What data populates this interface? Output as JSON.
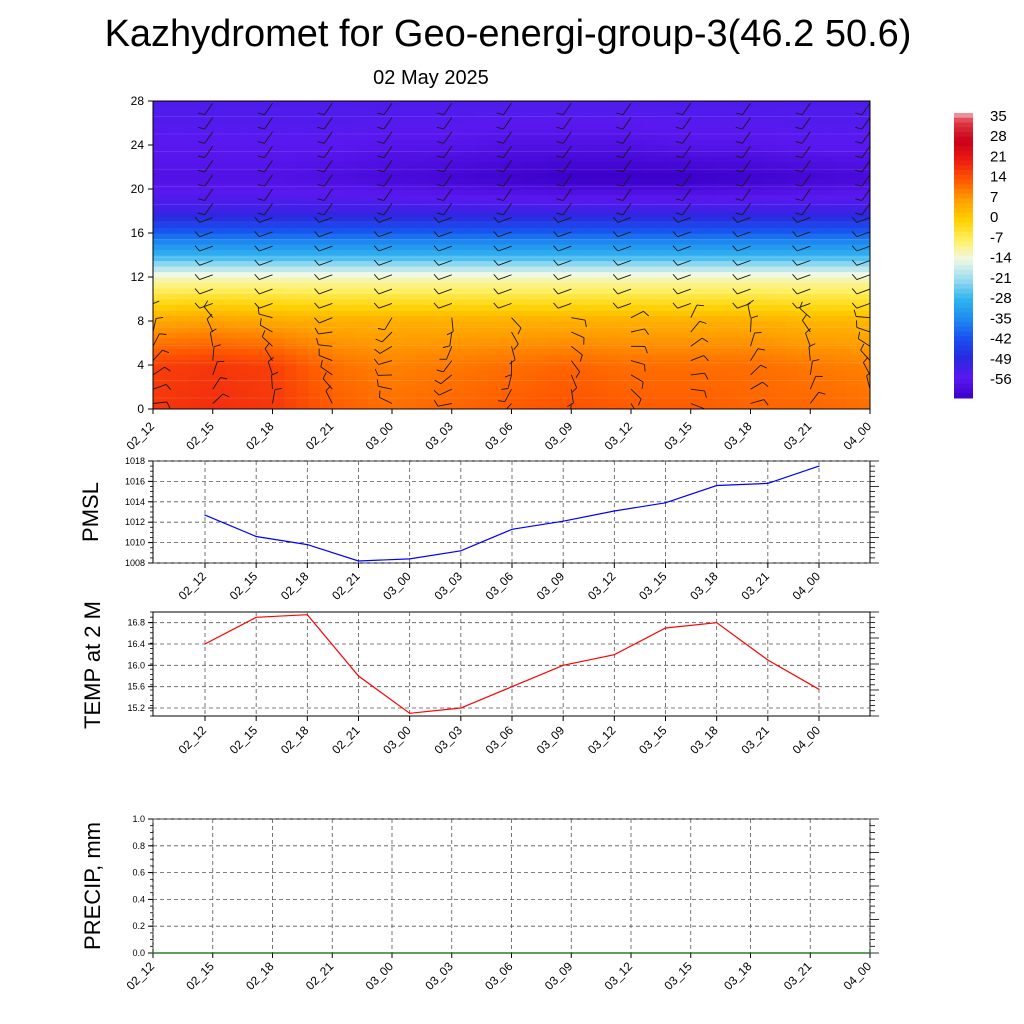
{
  "title": "Kazhydromet for Geo-energi-group-3(46.2 50.6)",
  "subtitle": "02 May 2025",
  "chart_data": [
    {
      "type": "heatmap",
      "name": "temperature-wind-cross-section",
      "x_ticks": [
        "02_12",
        "02_15",
        "02_18",
        "02_21",
        "03_00",
        "03_03",
        "03_06",
        "03_09",
        "03_12",
        "03_15",
        "03_18",
        "03_21",
        "04_00"
      ],
      "y_ticks": [
        "0",
        "4",
        "8",
        "12",
        "16",
        "20",
        "24",
        "28"
      ],
      "ylim": [
        0,
        28
      ],
      "x_rows": [
        {
          "level": 0,
          "values": [
            18,
            19,
            18,
            14,
            12,
            13,
            14,
            15,
            14,
            14,
            13,
            13,
            12
          ]
        },
        {
          "level": 4,
          "values": [
            17,
            18,
            17,
            12,
            10,
            11,
            12,
            13,
            12,
            12,
            12,
            11,
            10
          ]
        },
        {
          "level": 8,
          "values": [
            6,
            7,
            6,
            5,
            5,
            5,
            5,
            5,
            5,
            5,
            5,
            4,
            4
          ]
        },
        {
          "level": 12,
          "values": [
            -12,
            -12,
            -12,
            -12,
            -12,
            -12,
            -12,
            -12,
            -12,
            -12,
            -12,
            -12,
            -12
          ]
        },
        {
          "level": 14,
          "values": [
            -28,
            -28,
            -28,
            -28,
            -28,
            -28,
            -28,
            -28,
            -28,
            -28,
            -28,
            -28,
            -28
          ]
        },
        {
          "level": 16,
          "values": [
            -40,
            -40,
            -40,
            -40,
            -40,
            -40,
            -40,
            -40,
            -40,
            -40,
            -40,
            -40,
            -40
          ]
        },
        {
          "level": 18,
          "values": [
            -52,
            -52,
            -52,
            -52,
            -52,
            -52,
            -52,
            -52,
            -52,
            -52,
            -52,
            -52,
            -52
          ]
        },
        {
          "level": 21,
          "values": [
            -58,
            -58,
            -58,
            -59,
            -60,
            -61,
            -62,
            -63,
            -63,
            -63,
            -62,
            -61,
            -60
          ]
        },
        {
          "level": 24,
          "values": [
            -56,
            -56,
            -56,
            -56,
            -57,
            -57,
            -58,
            -58,
            -58,
            -57,
            -57,
            -56,
            -56
          ]
        },
        {
          "level": 28,
          "values": [
            -54,
            -54,
            -54,
            -54,
            -54,
            -54,
            -54,
            -54,
            -54,
            -54,
            -54,
            -54,
            -54
          ]
        }
      ],
      "colorbar": {
        "labels": [
          "35",
          "28",
          "21",
          "14",
          "7",
          "0",
          "-7",
          "-14",
          "-21",
          "-28",
          "-35",
          "-42",
          "-49",
          "-56"
        ],
        "range": [
          -63,
          38
        ]
      }
    },
    {
      "type": "line",
      "name": "pmsl",
      "ylabel": "PMSL",
      "categories": [
        "02_12",
        "02_15",
        "02_18",
        "02_21",
        "03_00",
        "03_03",
        "03_06",
        "03_09",
        "03_12",
        "03_15",
        "03_18",
        "03_21",
        "04_00"
      ],
      "values": [
        1012.7,
        1010.6,
        1009.8,
        1008.2,
        1008.4,
        1009.2,
        1011.3,
        1012.1,
        1013.1,
        1013.9,
        1015.6,
        1015.8,
        1017.5
      ],
      "ylim": [
        1008,
        1018
      ],
      "y_ticks": [
        "1008",
        "1010",
        "1012",
        "1014",
        "1016",
        "1018"
      ],
      "color": "#0000ff"
    },
    {
      "type": "line",
      "name": "temp2m",
      "ylabel": "TEMP at 2 M",
      "categories": [
        "02_12",
        "02_15",
        "02_18",
        "02_21",
        "03_00",
        "03_03",
        "03_06",
        "03_09",
        "03_12",
        "03_15",
        "03_18",
        "03_21",
        "04_00"
      ],
      "values": [
        16.4,
        16.9,
        16.95,
        15.8,
        15.1,
        15.2,
        15.6,
        16.0,
        16.2,
        16.7,
        16.8,
        16.1,
        15.55
      ],
      "ylim": [
        15.05,
        17.0
      ],
      "y_ticks": [
        "15.2",
        "15.6",
        "16.0",
        "16.4",
        "16.8"
      ],
      "color": "#ff0000"
    },
    {
      "type": "line",
      "name": "precip",
      "ylabel": "PRECIP, mm",
      "categories": [
        "02_12",
        "02_15",
        "02_18",
        "02_21",
        "03_00",
        "03_03",
        "03_06",
        "03_09",
        "03_12",
        "03_15",
        "03_18",
        "03_21",
        "04_00"
      ],
      "values": [
        0,
        0,
        0,
        0,
        0,
        0,
        0,
        0,
        0,
        0,
        0,
        0,
        0
      ],
      "ylim": [
        0,
        1.0
      ],
      "y_ticks": [
        "0.0",
        "0.2",
        "0.4",
        "0.6",
        "0.8",
        "1.0"
      ],
      "color": "#006400"
    }
  ]
}
